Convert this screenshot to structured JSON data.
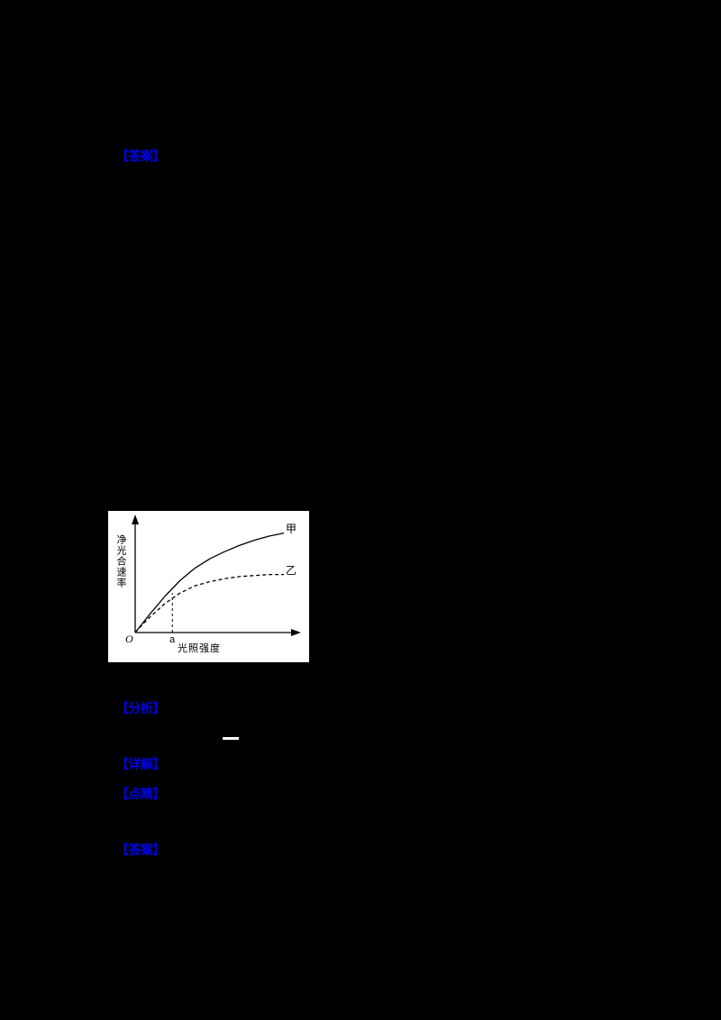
{
  "page": {
    "background_color": "#000000",
    "accent_color": "#0000ee",
    "labels": [
      {
        "text": "【答案】"
      },
      {
        "text": "【分析】"
      },
      {
        "text": "【详解】"
      },
      {
        "text": "【点睛】"
      },
      {
        "text": "【答案】"
      }
    ],
    "blank_line": {
      "color": "#ffffff"
    }
  },
  "chart_data": {
    "type": "line",
    "title": "",
    "xlabel": "光照强度",
    "ylabel": "净光合速率",
    "origin_label": "O",
    "x_ticks": [
      {
        "label": "a",
        "x": 0.25
      }
    ],
    "xlim": [
      0,
      1
    ],
    "ylim": [
      0,
      1
    ],
    "grid": false,
    "axis_arrows": true,
    "legend_position": "inline-right",
    "series": [
      {
        "name": "甲",
        "line_style": "solid",
        "color": "#000000",
        "x": [
          0,
          0.05,
          0.1,
          0.2,
          0.3,
          0.4,
          0.5,
          0.6,
          0.7,
          0.8,
          0.9,
          1.0
        ],
        "values": [
          0,
          0.09,
          0.18,
          0.35,
          0.5,
          0.62,
          0.71,
          0.78,
          0.84,
          0.89,
          0.93,
          0.96
        ]
      },
      {
        "name": "乙",
        "line_style": "dashed",
        "color": "#000000",
        "x": [
          0,
          0.05,
          0.1,
          0.2,
          0.3,
          0.4,
          0.5,
          0.6,
          0.7,
          0.8,
          0.9,
          1.0
        ],
        "values": [
          0,
          0.08,
          0.15,
          0.28,
          0.38,
          0.45,
          0.49,
          0.52,
          0.54,
          0.55,
          0.56,
          0.56
        ]
      }
    ],
    "annotations": [
      {
        "type": "dashed-vline",
        "x": 0.25,
        "y": 0.38,
        "label": "a"
      }
    ]
  }
}
